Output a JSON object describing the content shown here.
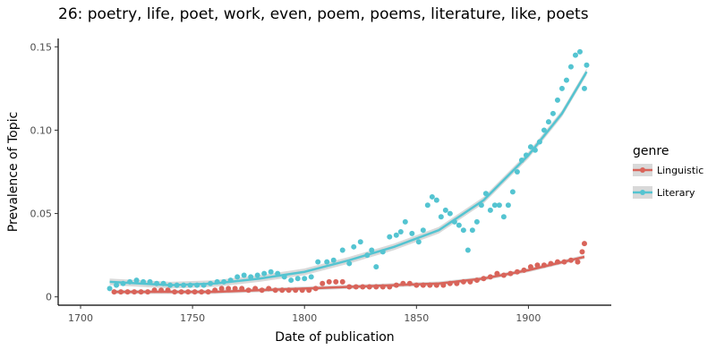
{
  "chart_data": {
    "type": "scatter",
    "title": "26: poetry, life, poet, work, even, poem, poems, literature, like, poets",
    "xlabel": "Date of publication",
    "ylabel": "Prevalence of Topic",
    "xlim": [
      1690,
      1937
    ],
    "ylim": [
      -0.005,
      0.155
    ],
    "x_ticks": [
      1700,
      1750,
      1800,
      1850,
      1900
    ],
    "y_ticks": [
      0,
      0.05,
      0.1,
      0.15
    ],
    "y_tick_labels": [
      "0",
      "0.05",
      "0.10",
      "0.15"
    ],
    "grid": false,
    "legend": {
      "title": "genre",
      "position": "right"
    },
    "series": [
      {
        "name": "Linguistic",
        "color": "#d9645a",
        "points": [
          [
            1715,
            0.003
          ],
          [
            1718,
            0.003
          ],
          [
            1721,
            0.003
          ],
          [
            1724,
            0.003
          ],
          [
            1727,
            0.003
          ],
          [
            1730,
            0.003
          ],
          [
            1733,
            0.004
          ],
          [
            1736,
            0.004
          ],
          [
            1739,
            0.004
          ],
          [
            1742,
            0.003
          ],
          [
            1745,
            0.003
          ],
          [
            1748,
            0.003
          ],
          [
            1751,
            0.003
          ],
          [
            1754,
            0.003
          ],
          [
            1757,
            0.003
          ],
          [
            1760,
            0.004
          ],
          [
            1763,
            0.005
          ],
          [
            1766,
            0.005
          ],
          [
            1769,
            0.005
          ],
          [
            1772,
            0.005
          ],
          [
            1775,
            0.004
          ],
          [
            1778,
            0.005
          ],
          [
            1781,
            0.004
          ],
          [
            1784,
            0.005
          ],
          [
            1787,
            0.004
          ],
          [
            1790,
            0.004
          ],
          [
            1793,
            0.004
          ],
          [
            1796,
            0.004
          ],
          [
            1799,
            0.004
          ],
          [
            1802,
            0.004
          ],
          [
            1805,
            0.005
          ],
          [
            1808,
            0.008
          ],
          [
            1811,
            0.009
          ],
          [
            1814,
            0.009
          ],
          [
            1817,
            0.009
          ],
          [
            1820,
            0.006
          ],
          [
            1823,
            0.006
          ],
          [
            1826,
            0.006
          ],
          [
            1829,
            0.006
          ],
          [
            1832,
            0.006
          ],
          [
            1835,
            0.006
          ],
          [
            1838,
            0.006
          ],
          [
            1841,
            0.007
          ],
          [
            1844,
            0.008
          ],
          [
            1847,
            0.008
          ],
          [
            1850,
            0.007
          ],
          [
            1853,
            0.007
          ],
          [
            1856,
            0.007
          ],
          [
            1859,
            0.007
          ],
          [
            1862,
            0.007
          ],
          [
            1865,
            0.008
          ],
          [
            1868,
            0.008
          ],
          [
            1871,
            0.009
          ],
          [
            1874,
            0.009
          ],
          [
            1877,
            0.01
          ],
          [
            1880,
            0.011
          ],
          [
            1883,
            0.012
          ],
          [
            1886,
            0.014
          ],
          [
            1889,
            0.013
          ],
          [
            1892,
            0.014
          ],
          [
            1895,
            0.015
          ],
          [
            1898,
            0.016
          ],
          [
            1901,
            0.018
          ],
          [
            1904,
            0.019
          ],
          [
            1907,
            0.019
          ],
          [
            1910,
            0.02
          ],
          [
            1913,
            0.021
          ],
          [
            1916,
            0.021
          ],
          [
            1919,
            0.022
          ],
          [
            1922,
            0.021
          ],
          [
            1924,
            0.027
          ],
          [
            1925,
            0.032
          ]
        ],
        "trend": [
          [
            1715,
            0.003
          ],
          [
            1740,
            0.003
          ],
          [
            1760,
            0.003
          ],
          [
            1780,
            0.004
          ],
          [
            1800,
            0.005
          ],
          [
            1820,
            0.006
          ],
          [
            1840,
            0.007
          ],
          [
            1860,
            0.008
          ],
          [
            1880,
            0.011
          ],
          [
            1900,
            0.016
          ],
          [
            1925,
            0.024
          ]
        ]
      },
      {
        "name": "Literary",
        "color": "#54c4d1",
        "points": [
          [
            1713,
            0.005
          ],
          [
            1716,
            0.007
          ],
          [
            1719,
            0.008
          ],
          [
            1722,
            0.009
          ],
          [
            1725,
            0.01
          ],
          [
            1728,
            0.009
          ],
          [
            1731,
            0.009
          ],
          [
            1734,
            0.008
          ],
          [
            1737,
            0.008
          ],
          [
            1740,
            0.007
          ],
          [
            1743,
            0.007
          ],
          [
            1746,
            0.007
          ],
          [
            1749,
            0.007
          ],
          [
            1752,
            0.007
          ],
          [
            1755,
            0.007
          ],
          [
            1758,
            0.008
          ],
          [
            1761,
            0.009
          ],
          [
            1764,
            0.009
          ],
          [
            1767,
            0.01
          ],
          [
            1770,
            0.012
          ],
          [
            1773,
            0.013
          ],
          [
            1776,
            0.012
          ],
          [
            1779,
            0.013
          ],
          [
            1782,
            0.014
          ],
          [
            1785,
            0.015
          ],
          [
            1788,
            0.014
          ],
          [
            1791,
            0.012
          ],
          [
            1794,
            0.01
          ],
          [
            1797,
            0.011
          ],
          [
            1800,
            0.011
          ],
          [
            1803,
            0.012
          ],
          [
            1806,
            0.021
          ],
          [
            1810,
            0.021
          ],
          [
            1813,
            0.022
          ],
          [
            1817,
            0.028
          ],
          [
            1820,
            0.02
          ],
          [
            1822,
            0.03
          ],
          [
            1825,
            0.033
          ],
          [
            1828,
            0.025
          ],
          [
            1830,
            0.028
          ],
          [
            1832,
            0.018
          ],
          [
            1835,
            0.027
          ],
          [
            1838,
            0.036
          ],
          [
            1841,
            0.037
          ],
          [
            1843,
            0.039
          ],
          [
            1845,
            0.045
          ],
          [
            1848,
            0.038
          ],
          [
            1851,
            0.033
          ],
          [
            1853,
            0.04
          ],
          [
            1855,
            0.055
          ],
          [
            1857,
            0.06
          ],
          [
            1859,
            0.058
          ],
          [
            1861,
            0.048
          ],
          [
            1863,
            0.052
          ],
          [
            1865,
            0.05
          ],
          [
            1867,
            0.045
          ],
          [
            1869,
            0.043
          ],
          [
            1871,
            0.04
          ],
          [
            1873,
            0.028
          ],
          [
            1875,
            0.04
          ],
          [
            1877,
            0.045
          ],
          [
            1879,
            0.055
          ],
          [
            1881,
            0.062
          ],
          [
            1883,
            0.052
          ],
          [
            1885,
            0.055
          ],
          [
            1887,
            0.055
          ],
          [
            1889,
            0.048
          ],
          [
            1891,
            0.055
          ],
          [
            1893,
            0.063
          ],
          [
            1895,
            0.075
          ],
          [
            1897,
            0.082
          ],
          [
            1899,
            0.085
          ],
          [
            1901,
            0.09
          ],
          [
            1903,
            0.088
          ],
          [
            1905,
            0.093
          ],
          [
            1907,
            0.1
          ],
          [
            1909,
            0.105
          ],
          [
            1911,
            0.11
          ],
          [
            1913,
            0.118
          ],
          [
            1915,
            0.125
          ],
          [
            1917,
            0.13
          ],
          [
            1919,
            0.138
          ],
          [
            1921,
            0.145
          ],
          [
            1923,
            0.147
          ],
          [
            1925,
            0.125
          ],
          [
            1926,
            0.139
          ]
        ],
        "trend": [
          [
            1713,
            0.009
          ],
          [
            1740,
            0.007
          ],
          [
            1760,
            0.008
          ],
          [
            1780,
            0.011
          ],
          [
            1800,
            0.015
          ],
          [
            1820,
            0.022
          ],
          [
            1840,
            0.03
          ],
          [
            1860,
            0.04
          ],
          [
            1880,
            0.058
          ],
          [
            1900,
            0.085
          ],
          [
            1915,
            0.11
          ],
          [
            1926,
            0.135
          ]
        ]
      }
    ]
  }
}
